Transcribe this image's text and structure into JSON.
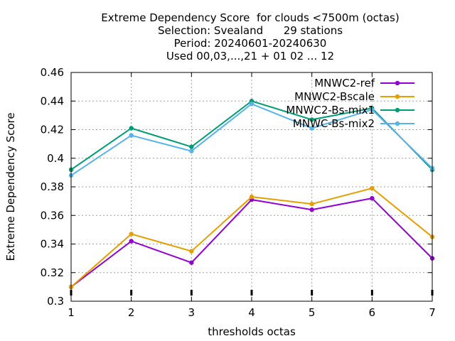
{
  "chart_data": {
    "type": "line",
    "title_lines": [
      "Extreme Dependency Score  for clouds <7500m (octas)",
      "Selection: Svealand      29 stations",
      "Period: 20240601-20240630",
      "Used 00,03,...,21 + 01 02 ... 12"
    ],
    "xlabel": "thresholds octas",
    "ylabel": "Extreme Dependency Score",
    "x": [
      1,
      2,
      3,
      4,
      5,
      6,
      7
    ],
    "xlim": [
      1,
      7
    ],
    "ylim": [
      0.3,
      0.46
    ],
    "yticks": [
      0.3,
      0.32,
      0.34,
      0.36,
      0.38,
      0.4,
      0.42,
      0.44,
      0.46
    ],
    "ytick_labels": [
      "0.3",
      "0.32",
      "0.34",
      "0.36",
      "0.38",
      "0.4",
      "0.42",
      "0.44",
      "0.46"
    ],
    "xtick_labels": [
      "1",
      "2",
      "3",
      "4",
      "5",
      "6",
      "7"
    ],
    "grid": true,
    "legend_position": "top-right",
    "series": [
      {
        "name": "MNWC2-ref",
        "color": "#9400d3",
        "values": [
          0.31,
          0.342,
          0.327,
          0.371,
          0.364,
          0.372,
          0.33
        ]
      },
      {
        "name": "MNWC2-Bscale",
        "color": "#e69f00",
        "values": [
          0.31,
          0.347,
          0.335,
          0.373,
          0.368,
          0.379,
          0.345
        ]
      },
      {
        "name": "MNWC2-Bs-mix1",
        "color": "#009e73",
        "values": [
          0.392,
          0.421,
          0.408,
          0.44,
          0.427,
          0.435,
          0.392
        ]
      },
      {
        "name": "MNWC-Bs-mix2",
        "color": "#56b4e9",
        "values": [
          0.388,
          0.416,
          0.405,
          0.438,
          0.421,
          0.434,
          0.393
        ]
      }
    ]
  }
}
